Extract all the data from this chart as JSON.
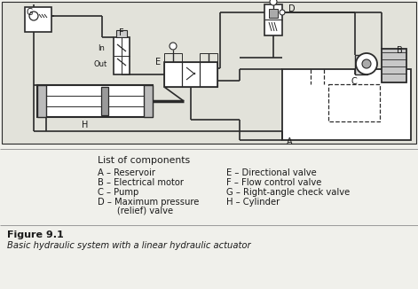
{
  "title": "Figure 9.1",
  "subtitle": "Basic hydraulic system with a linear hydraulic actuator",
  "list_header": "List of components",
  "components_left_line1": "A – Reservoir",
  "components_left_line2": "B – Electrical motor",
  "components_left_line3": "C – Pump",
  "components_left_line4": "D – Maximum pressure",
  "components_left_line5": "       (relief) valve",
  "components_right_line1": "E – Directional valve",
  "components_right_line2": "F – Flow control valve",
  "components_right_line3": "G – Right-angle check valve",
  "components_right_line4": "H – Cylinder",
  "bg_color": "#f0f0eb",
  "line_color": "#2a2a2a",
  "text_color": "#1a1a1a",
  "schematic_bg": "#e2e2da",
  "label_fontsize": 7.0,
  "body_fontsize": 7.2,
  "header_fontsize": 7.8,
  "title_fontsize": 8.0,
  "caption_fontsize": 7.2
}
